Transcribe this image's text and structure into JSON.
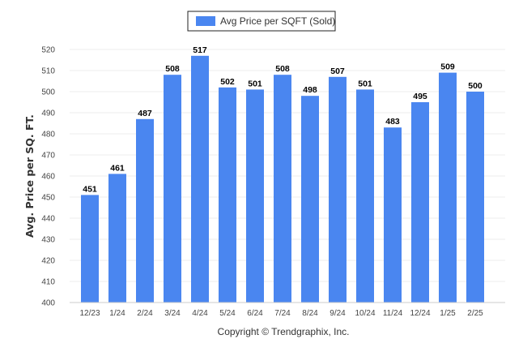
{
  "chart_data": {
    "type": "bar",
    "categories": [
      "12/23",
      "1/24",
      "2/24",
      "3/24",
      "4/24",
      "5/24",
      "6/24",
      "7/24",
      "8/24",
      "9/24",
      "10/24",
      "11/24",
      "12/24",
      "1/25",
      "2/25"
    ],
    "series": [
      {
        "name": "Avg Price per SQFT (Sold)",
        "values": [
          451,
          461,
          487,
          508,
          517,
          502,
          501,
          508,
          498,
          507,
          501,
          483,
          495,
          509,
          500
        ]
      }
    ],
    "ylabel": "Avg. Price per SQ. FT.",
    "ylim": [
      400,
      520
    ],
    "yticks": [
      400,
      410,
      420,
      430,
      440,
      450,
      460,
      470,
      480,
      490,
      500,
      510,
      520
    ],
    "legend_position": "top-center",
    "grid": true,
    "footer": "Copyright © Trendgraphix, Inc.",
    "colors": {
      "bar": "#4a86f0",
      "legend_swatch": "#4a86f0"
    }
  }
}
